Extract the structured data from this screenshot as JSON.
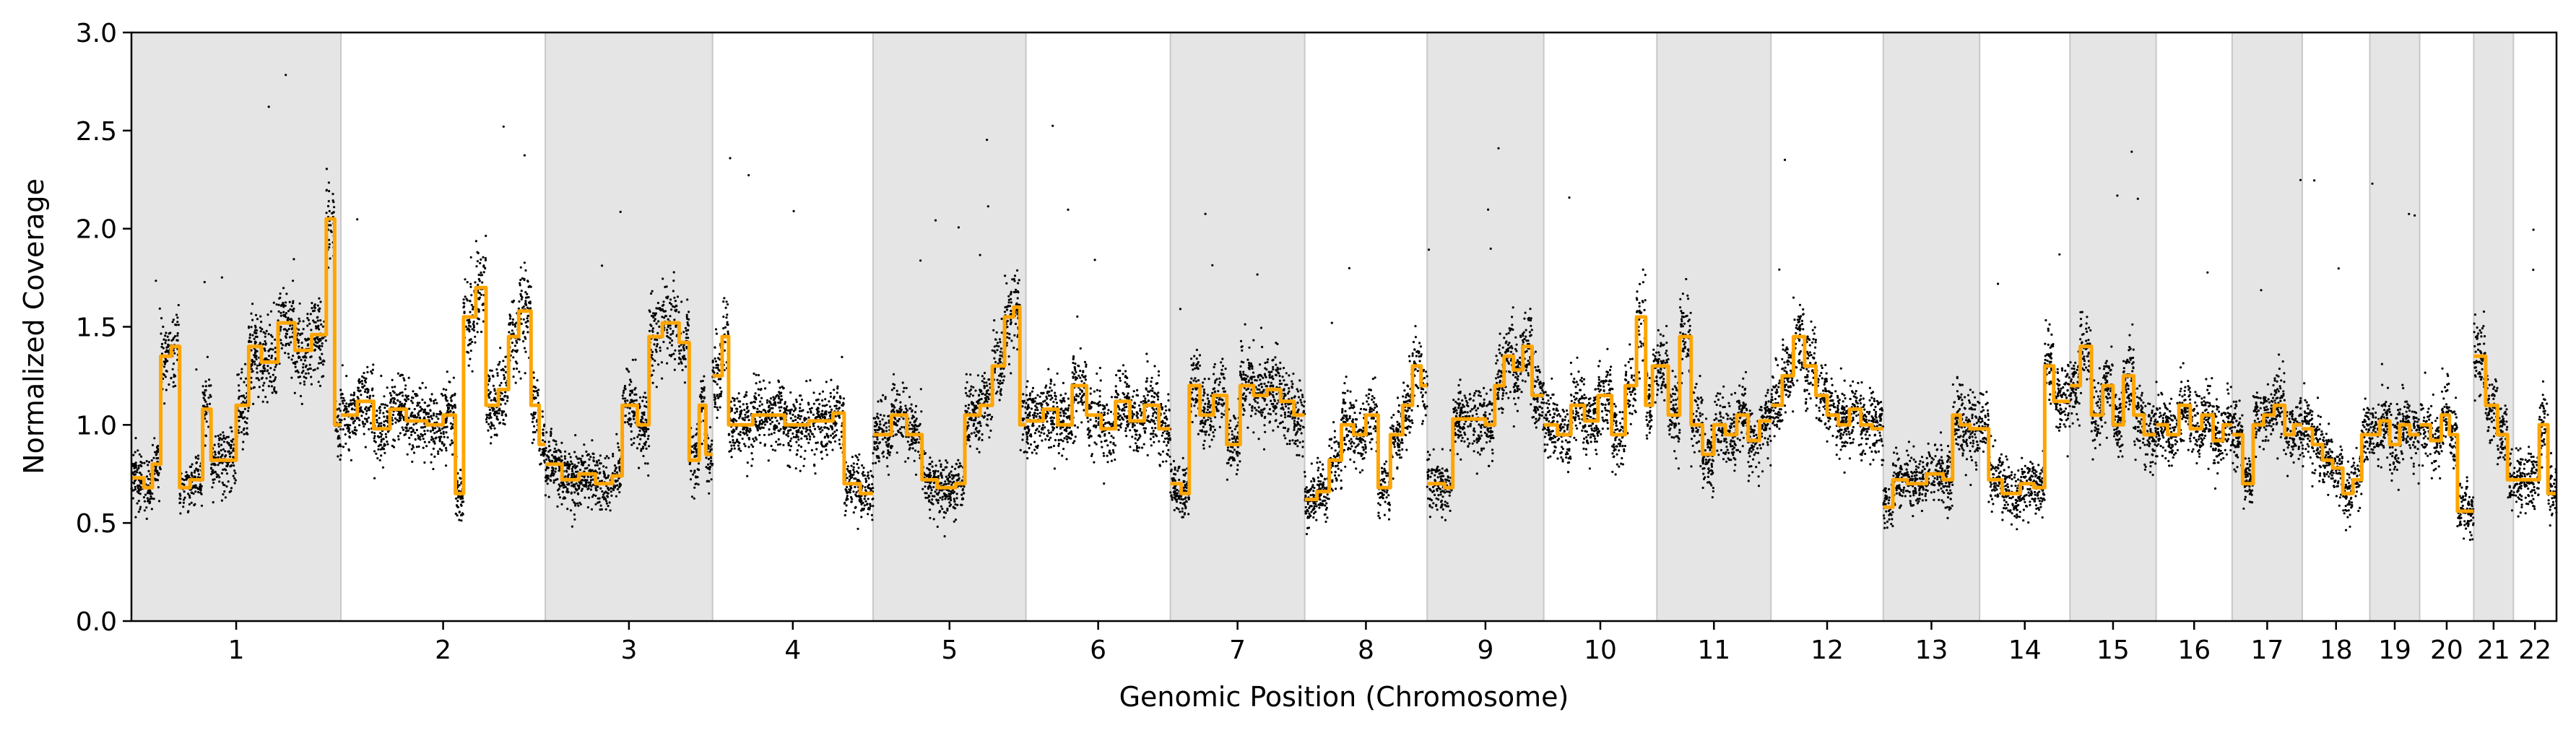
{
  "chart_data": {
    "type": "scatter",
    "title": "",
    "xlabel": "Genomic Position (Chromosome)",
    "ylabel": "Normalized Coverage",
    "ylim": [
      0.0,
      3.0
    ],
    "yticks": [
      "0.0",
      "0.5",
      "1.0",
      "1.5",
      "2.0",
      "2.5",
      "3.0"
    ],
    "grid": false,
    "legend": "none",
    "colors": {
      "points": "#000000",
      "segments": "#FFA500",
      "band": "#e5e5e5",
      "band_edge": "#c8c8c8"
    },
    "chromosomes": [
      {
        "label": "1",
        "size": 248,
        "band": true,
        "segments": [
          [
            0.0,
            0.73
          ],
          [
            0.06,
            0.68
          ],
          [
            0.1,
            0.8
          ],
          [
            0.14,
            1.35
          ],
          [
            0.19,
            1.4
          ],
          [
            0.23,
            0.68
          ],
          [
            0.28,
            0.72
          ],
          [
            0.34,
            1.08
          ],
          [
            0.38,
            0.82
          ],
          [
            0.5,
            1.1
          ],
          [
            0.56,
            1.4
          ],
          [
            0.62,
            1.32
          ],
          [
            0.7,
            1.52
          ],
          [
            0.78,
            1.38
          ],
          [
            0.86,
            1.46
          ],
          [
            0.93,
            2.05
          ],
          [
            0.97,
            1.0
          ]
        ]
      },
      {
        "label": "2",
        "size": 242,
        "band": false,
        "segments": [
          [
            0.0,
            1.05
          ],
          [
            0.08,
            1.12
          ],
          [
            0.16,
            0.98
          ],
          [
            0.24,
            1.08
          ],
          [
            0.32,
            1.02
          ],
          [
            0.42,
            1.0
          ],
          [
            0.5,
            1.05
          ],
          [
            0.56,
            0.65
          ],
          [
            0.6,
            1.55
          ],
          [
            0.66,
            1.7
          ],
          [
            0.71,
            1.1
          ],
          [
            0.77,
            1.18
          ],
          [
            0.82,
            1.45
          ],
          [
            0.87,
            1.58
          ],
          [
            0.93,
            1.1
          ],
          [
            0.97,
            0.9
          ]
        ]
      },
      {
        "label": "3",
        "size": 198,
        "band": true,
        "segments": [
          [
            0.0,
            0.8
          ],
          [
            0.1,
            0.72
          ],
          [
            0.2,
            0.75
          ],
          [
            0.3,
            0.7
          ],
          [
            0.4,
            0.74
          ],
          [
            0.46,
            1.1
          ],
          [
            0.55,
            1.0
          ],
          [
            0.62,
            1.45
          ],
          [
            0.7,
            1.52
          ],
          [
            0.8,
            1.42
          ],
          [
            0.86,
            0.82
          ],
          [
            0.92,
            1.1
          ],
          [
            0.96,
            0.85
          ]
        ]
      },
      {
        "label": "4",
        "size": 190,
        "band": false,
        "segments": [
          [
            0.0,
            1.25
          ],
          [
            0.06,
            1.45
          ],
          [
            0.1,
            1.0
          ],
          [
            0.25,
            1.05
          ],
          [
            0.45,
            1.0
          ],
          [
            0.6,
            1.02
          ],
          [
            0.75,
            1.06
          ],
          [
            0.82,
            0.7
          ],
          [
            0.92,
            0.65
          ]
        ]
      },
      {
        "label": "5",
        "size": 181,
        "band": true,
        "segments": [
          [
            0.0,
            0.95
          ],
          [
            0.12,
            1.05
          ],
          [
            0.22,
            0.95
          ],
          [
            0.32,
            0.72
          ],
          [
            0.42,
            0.68
          ],
          [
            0.54,
            0.7
          ],
          [
            0.6,
            1.05
          ],
          [
            0.7,
            1.1
          ],
          [
            0.78,
            1.3
          ],
          [
            0.86,
            1.55
          ],
          [
            0.92,
            1.6
          ],
          [
            0.96,
            1.0
          ]
        ]
      },
      {
        "label": "6",
        "size": 171,
        "band": false,
        "segments": [
          [
            0.0,
            1.02
          ],
          [
            0.12,
            1.08
          ],
          [
            0.22,
            1.0
          ],
          [
            0.32,
            1.2
          ],
          [
            0.42,
            1.05
          ],
          [
            0.52,
            0.98
          ],
          [
            0.62,
            1.12
          ],
          [
            0.72,
            1.02
          ],
          [
            0.82,
            1.1
          ],
          [
            0.92,
            0.98
          ]
        ]
      },
      {
        "label": "7",
        "size": 159,
        "band": true,
        "segments": [
          [
            0.0,
            0.7
          ],
          [
            0.08,
            0.65
          ],
          [
            0.14,
            1.2
          ],
          [
            0.22,
            1.05
          ],
          [
            0.32,
            1.15
          ],
          [
            0.42,
            0.9
          ],
          [
            0.52,
            1.2
          ],
          [
            0.62,
            1.15
          ],
          [
            0.72,
            1.18
          ],
          [
            0.82,
            1.12
          ],
          [
            0.92,
            1.05
          ]
        ]
      },
      {
        "label": "8",
        "size": 145,
        "band": false,
        "segments": [
          [
            0.0,
            0.62
          ],
          [
            0.1,
            0.66
          ],
          [
            0.2,
            0.82
          ],
          [
            0.3,
            1.0
          ],
          [
            0.4,
            0.95
          ],
          [
            0.5,
            1.05
          ],
          [
            0.6,
            0.68
          ],
          [
            0.7,
            0.95
          ],
          [
            0.8,
            1.1
          ],
          [
            0.88,
            1.3
          ],
          [
            0.95,
            1.2
          ]
        ]
      },
      {
        "label": "9",
        "size": 138,
        "band": true,
        "segments": [
          [
            0.0,
            0.7
          ],
          [
            0.15,
            0.68
          ],
          [
            0.22,
            1.03
          ],
          [
            0.36,
            1.03
          ],
          [
            0.5,
            1.0
          ],
          [
            0.58,
            1.2
          ],
          [
            0.66,
            1.35
          ],
          [
            0.74,
            1.28
          ],
          [
            0.82,
            1.4
          ],
          [
            0.9,
            1.15
          ]
        ]
      },
      {
        "label": "10",
        "size": 134,
        "band": false,
        "segments": [
          [
            0.0,
            1.0
          ],
          [
            0.12,
            0.95
          ],
          [
            0.24,
            1.1
          ],
          [
            0.36,
            1.02
          ],
          [
            0.48,
            1.15
          ],
          [
            0.6,
            0.95
          ],
          [
            0.72,
            1.2
          ],
          [
            0.82,
            1.55
          ],
          [
            0.9,
            1.1
          ],
          [
            0.96,
            1.3
          ]
        ]
      },
      {
        "label": "11",
        "size": 135,
        "band": true,
        "segments": [
          [
            0.0,
            1.3
          ],
          [
            0.1,
            1.05
          ],
          [
            0.2,
            1.45
          ],
          [
            0.3,
            1.0
          ],
          [
            0.4,
            0.85
          ],
          [
            0.5,
            1.0
          ],
          [
            0.6,
            0.95
          ],
          [
            0.7,
            1.05
          ],
          [
            0.8,
            0.92
          ],
          [
            0.9,
            1.02
          ]
        ]
      },
      {
        "label": "12",
        "size": 133,
        "band": false,
        "segments": [
          [
            0.0,
            1.1
          ],
          [
            0.1,
            1.25
          ],
          [
            0.2,
            1.45
          ],
          [
            0.3,
            1.3
          ],
          [
            0.4,
            1.15
          ],
          [
            0.5,
            1.05
          ],
          [
            0.6,
            1.0
          ],
          [
            0.7,
            1.08
          ],
          [
            0.8,
            1.0
          ],
          [
            0.9,
            0.98
          ]
        ]
      },
      {
        "label": "13",
        "size": 114,
        "band": true,
        "segments": [
          [
            0.0,
            0.58
          ],
          [
            0.1,
            0.72
          ],
          [
            0.25,
            0.7
          ],
          [
            0.45,
            0.75
          ],
          [
            0.62,
            0.72
          ],
          [
            0.72,
            1.05
          ],
          [
            0.8,
            1.0
          ],
          [
            0.9,
            0.98
          ]
        ]
      },
      {
        "label": "14",
        "size": 107,
        "band": false,
        "segments": [
          [
            0.0,
            0.98
          ],
          [
            0.1,
            0.72
          ],
          [
            0.25,
            0.65
          ],
          [
            0.45,
            0.7
          ],
          [
            0.6,
            0.68
          ],
          [
            0.72,
            1.3
          ],
          [
            0.82,
            1.12
          ],
          [
            0.92,
            1.12
          ]
        ]
      },
      {
        "label": "15",
        "size": 102,
        "band": true,
        "segments": [
          [
            0.0,
            1.2
          ],
          [
            0.12,
            1.4
          ],
          [
            0.25,
            1.05
          ],
          [
            0.38,
            1.2
          ],
          [
            0.5,
            1.0
          ],
          [
            0.62,
            1.25
          ],
          [
            0.74,
            1.05
          ],
          [
            0.86,
            0.95
          ]
        ]
      },
      {
        "label": "16",
        "size": 90,
        "band": false,
        "segments": [
          [
            0.0,
            1.0
          ],
          [
            0.15,
            0.95
          ],
          [
            0.3,
            1.1
          ],
          [
            0.45,
            0.98
          ],
          [
            0.6,
            1.05
          ],
          [
            0.75,
            0.92
          ],
          [
            0.88,
            1.0
          ]
        ]
      },
      {
        "label": "17",
        "size": 83,
        "band": true,
        "segments": [
          [
            0.0,
            0.95
          ],
          [
            0.15,
            0.7
          ],
          [
            0.3,
            1.0
          ],
          [
            0.45,
            1.05
          ],
          [
            0.6,
            1.1
          ],
          [
            0.75,
            0.95
          ],
          [
            0.88,
            1.0
          ]
        ]
      },
      {
        "label": "18",
        "size": 80,
        "band": false,
        "segments": [
          [
            0.0,
            0.98
          ],
          [
            0.15,
            0.9
          ],
          [
            0.3,
            0.82
          ],
          [
            0.45,
            0.78
          ],
          [
            0.6,
            0.65
          ],
          [
            0.75,
            0.72
          ],
          [
            0.88,
            0.95
          ]
        ]
      },
      {
        "label": "19",
        "size": 59,
        "band": true,
        "segments": [
          [
            0.0,
            0.95
          ],
          [
            0.2,
            1.02
          ],
          [
            0.4,
            0.9
          ],
          [
            0.6,
            1.0
          ],
          [
            0.8,
            0.95
          ]
        ]
      },
      {
        "label": "20",
        "size": 64,
        "band": false,
        "segments": [
          [
            0.0,
            1.0
          ],
          [
            0.2,
            0.92
          ],
          [
            0.4,
            1.05
          ],
          [
            0.55,
            0.95
          ],
          [
            0.7,
            0.56
          ],
          [
            0.85,
            0.56
          ]
        ]
      },
      {
        "label": "21",
        "size": 47,
        "band": true,
        "segments": [
          [
            0.0,
            1.35
          ],
          [
            0.3,
            1.1
          ],
          [
            0.6,
            0.95
          ],
          [
            0.85,
            0.72
          ]
        ]
      },
      {
        "label": "22",
        "size": 51,
        "band": false,
        "segments": [
          [
            0.0,
            0.72
          ],
          [
            0.4,
            0.72
          ],
          [
            0.6,
            1.0
          ],
          [
            0.8,
            0.65
          ]
        ]
      }
    ]
  }
}
